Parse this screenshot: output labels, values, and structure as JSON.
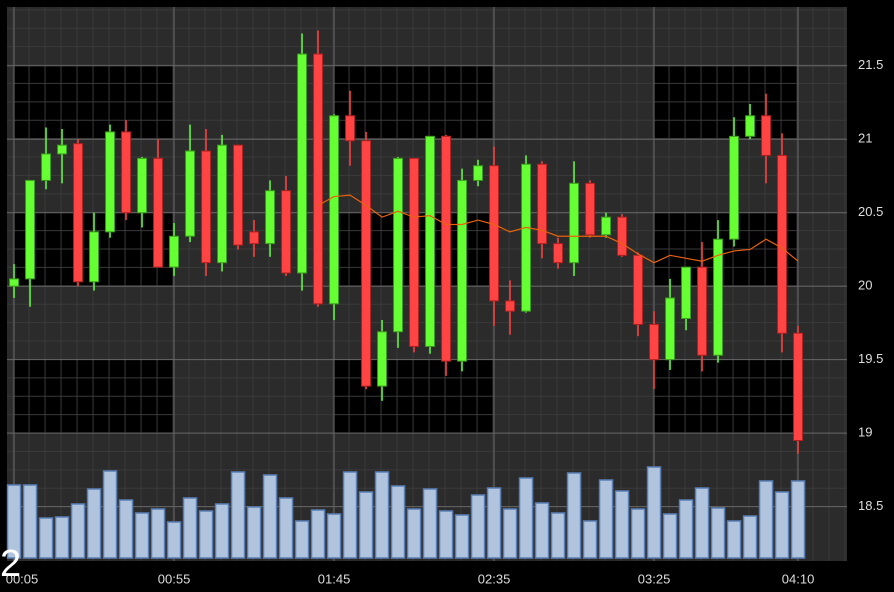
{
  "chart_data": {
    "type": "candlestick",
    "corner_label": "2",
    "x": [
      5,
      10,
      15,
      20,
      25,
      30,
      35,
      40,
      45,
      50,
      55,
      60,
      65,
      70,
      75,
      80,
      85,
      90,
      95,
      100,
      105,
      110,
      115,
      120,
      125,
      130,
      135,
      140,
      145,
      150,
      155,
      160,
      165,
      170,
      175,
      180,
      185,
      190,
      195,
      200,
      205,
      210,
      215,
      220,
      225,
      230,
      235,
      240,
      245,
      250
    ],
    "open": [
      20.0,
      20.05,
      20.72,
      20.9,
      20.97,
      20.03,
      20.37,
      21.05,
      20.5,
      20.87,
      20.13,
      20.34,
      20.92,
      20.16,
      20.96,
      20.37,
      20.29,
      20.65,
      20.09,
      21.58,
      19.88,
      21.16,
      20.99,
      19.32,
      19.69,
      20.87,
      19.59,
      21.02,
      19.49,
      20.72,
      20.82,
      19.9,
      19.83,
      20.83,
      20.29,
      20.16,
      20.7,
      20.35,
      20.47,
      20.21,
      19.74,
      19.5,
      19.78,
      20.13,
      19.53,
      20.32,
      21.02,
      21.16,
      20.89,
      19.68
    ],
    "high": [
      20.15,
      20.72,
      21.08,
      21.07,
      21.0,
      20.5,
      21.1,
      21.13,
      20.88,
      21.0,
      20.43,
      21.1,
      21.07,
      21.03,
      20.96,
      20.45,
      20.72,
      20.75,
      21.72,
      21.74,
      21.17,
      21.33,
      21.05,
      19.77,
      20.88,
      20.87,
      21.02,
      21.03,
      20.8,
      20.86,
      20.95,
      20.04,
      20.89,
      20.85,
      20.33,
      20.85,
      20.72,
      20.5,
      20.49,
      20.23,
      19.83,
      20.05,
      20.13,
      20.3,
      20.45,
      21.15,
      21.24,
      21.31,
      21.04,
      19.73
    ],
    "low": [
      19.92,
      19.86,
      20.66,
      20.7,
      20.0,
      19.97,
      20.33,
      20.45,
      20.4,
      20.13,
      20.07,
      20.3,
      20.07,
      20.1,
      20.25,
      20.2,
      20.2,
      20.07,
      19.97,
      19.86,
      19.77,
      20.82,
      19.3,
      19.22,
      19.58,
      19.55,
      19.54,
      19.39,
      19.42,
      20.68,
      19.73,
      19.67,
      19.82,
      20.19,
      20.12,
      20.07,
      20.33,
      20.33,
      20.2,
      19.66,
      19.3,
      19.43,
      19.7,
      19.42,
      19.48,
      20.27,
      21.0,
      20.7,
      19.55,
      18.86
    ],
    "close": [
      20.05,
      20.72,
      20.9,
      20.96,
      20.03,
      20.37,
      21.05,
      20.5,
      20.87,
      20.13,
      20.34,
      20.92,
      20.16,
      20.96,
      20.28,
      20.29,
      20.65,
      20.09,
      21.58,
      19.88,
      21.16,
      20.99,
      19.32,
      19.69,
      20.87,
      19.59,
      21.02,
      19.49,
      20.72,
      20.82,
      19.9,
      19.83,
      20.83,
      20.29,
      20.16,
      20.7,
      20.35,
      20.47,
      20.21,
      19.74,
      19.5,
      19.92,
      20.13,
      19.53,
      20.32,
      21.02,
      21.16,
      20.89,
      19.68,
      18.95
    ],
    "ma": [
      null,
      null,
      null,
      null,
      null,
      null,
      null,
      null,
      null,
      null,
      null,
      null,
      null,
      null,
      null,
      null,
      null,
      null,
      null,
      20.55,
      20.61,
      20.62,
      20.55,
      20.47,
      20.51,
      20.47,
      20.48,
      20.42,
      20.42,
      20.45,
      20.42,
      20.37,
      20.4,
      20.38,
      20.34,
      20.34,
      20.34,
      20.34,
      20.29,
      20.22,
      20.16,
      20.21,
      20.19,
      20.17,
      20.21,
      20.24,
      20.25,
      20.32,
      20.26,
      20.17
    ],
    "ma_color": "#e8620c",
    "volume": [
      73,
      73,
      40,
      41,
      54,
      69,
      87,
      58,
      45,
      49,
      36,
      60,
      47,
      54,
      86,
      51,
      83,
      60,
      37,
      48,
      44,
      86,
      66,
      86,
      72,
      49,
      69,
      47,
      43,
      63,
      70,
      49,
      80,
      55,
      45,
      85,
      37,
      78,
      67,
      49,
      91,
      44,
      58,
      70,
      50,
      37,
      42,
      77,
      66,
      77
    ],
    "volume_lim": [
      0,
      100
    ],
    "volume_color": "#b0c4de",
    "up_color": "#66ff33",
    "down_color": "#ff4444",
    "xlim": [
      2.8,
      265.3
    ],
    "xticks": [
      {
        "value": 5,
        "label": "00:05"
      },
      {
        "value": 55,
        "label": "00:55"
      },
      {
        "value": 105,
        "label": "01:45"
      },
      {
        "value": 155,
        "label": "02:35"
      },
      {
        "value": 205,
        "label": "03:25"
      },
      {
        "value": 250,
        "label": "04:10"
      }
    ],
    "ylim": [
      18.13,
      21.9
    ],
    "yticks": [
      18.5,
      19.0,
      19.5,
      20.0,
      20.5,
      21.0,
      21.5
    ],
    "grid": true
  }
}
